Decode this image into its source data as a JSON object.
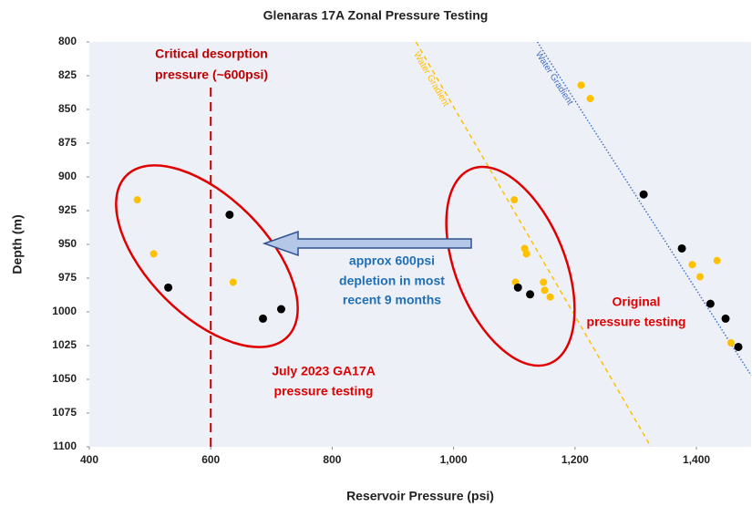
{
  "chart_data": {
    "type": "scatter",
    "title": "Glenaras 17A Zonal Pressure Testing",
    "xlabel": "Reservoir Pressure (psi)",
    "ylabel": "Depth (m)",
    "xlim": [
      400,
      1490
    ],
    "ylim": [
      1100,
      800
    ],
    "xticks": [
      400,
      600,
      800,
      {
        "value": 1000,
        "label": "1,000"
      },
      {
        "value": 1200,
        "label": "1,200"
      },
      {
        "value": 1400,
        "label": "1,400"
      }
    ],
    "yticks": [
      800,
      825,
      850,
      875,
      900,
      925,
      950,
      975,
      1000,
      1025,
      1050,
      1075,
      1100
    ],
    "series": [
      {
        "color": "#ffc000",
        "x": [
          479,
          506,
          637,
          1210,
          1225,
          1100,
          1117,
          1120,
          1102,
          1148,
          1150,
          1159,
          1393,
          1434,
          1406,
          1457
        ],
        "values": [
          917,
          957,
          978,
          832,
          842,
          917,
          953,
          957,
          978,
          978,
          984,
          989,
          965,
          962,
          974,
          1023
        ]
      },
      {
        "color": "#000000",
        "x": [
          530,
          631,
          686,
          716,
          1313,
          1106,
          1126,
          1376,
          1423,
          1448,
          1469
        ],
        "values": [
          982,
          928,
          1005,
          998,
          913,
          982,
          987,
          953,
          994,
          1005,
          1026
        ]
      }
    ],
    "vline": {
      "x": 600,
      "color": "#c00000"
    },
    "lines": [
      {
        "name": "Water Gradient",
        "color": "#ffc000",
        "x": [
          938,
          1325
        ],
        "values": [
          800,
          1100
        ]
      },
      {
        "name": "Water Gradient",
        "color": "#4472c4",
        "x": [
          1138,
          1490
        ],
        "values": [
          800,
          1047
        ]
      }
    ],
    "annotations": [
      [
        "Critical desorption",
        "pressure (~600psi)"
      ],
      [
        "approx 600psi",
        "depletion in most",
        "recent 9 months"
      ],
      [
        "Original",
        "pressure testing"
      ],
      [
        "July 2023 GA17A",
        "pressure testing"
      ]
    ]
  }
}
